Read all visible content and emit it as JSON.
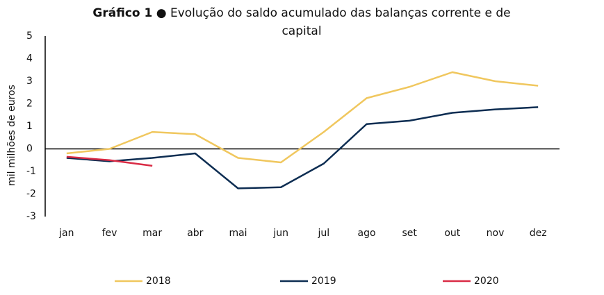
{
  "chart_data": {
    "type": "line",
    "title_prefix": "Gráfico 1",
    "title": "● Evolução do saldo acumulado das balanças corrente e de capital",
    "ylabel": "mil milhões de euros",
    "categories": [
      "jan",
      "fev",
      "mar",
      "abr",
      "mai",
      "jun",
      "jul",
      "ago",
      "set",
      "out",
      "nov",
      "dez"
    ],
    "series": [
      {
        "name": "2018",
        "color": "#f0c75e",
        "values": [
          -0.2,
          0,
          0.75,
          0.65,
          -0.4,
          -0.6,
          0.75,
          2.25,
          2.75,
          3.4,
          3.0,
          2.8
        ]
      },
      {
        "name": "2019",
        "color": "#0d2d52",
        "values": [
          -0.4,
          -0.55,
          -0.4,
          -0.2,
          -1.75,
          -1.7,
          -0.65,
          1.1,
          1.25,
          1.6,
          1.75,
          1.85
        ]
      },
      {
        "name": "2020",
        "color": "#d92b45",
        "values": [
          -0.35,
          -0.5,
          -0.75,
          null,
          null,
          null,
          null,
          null,
          null,
          null,
          null,
          null
        ]
      }
    ],
    "ylim": [
      -3,
      5
    ],
    "yticks": [
      -3,
      -2,
      -1,
      0,
      1,
      2,
      3,
      4,
      5
    ],
    "legend": "bottom"
  }
}
